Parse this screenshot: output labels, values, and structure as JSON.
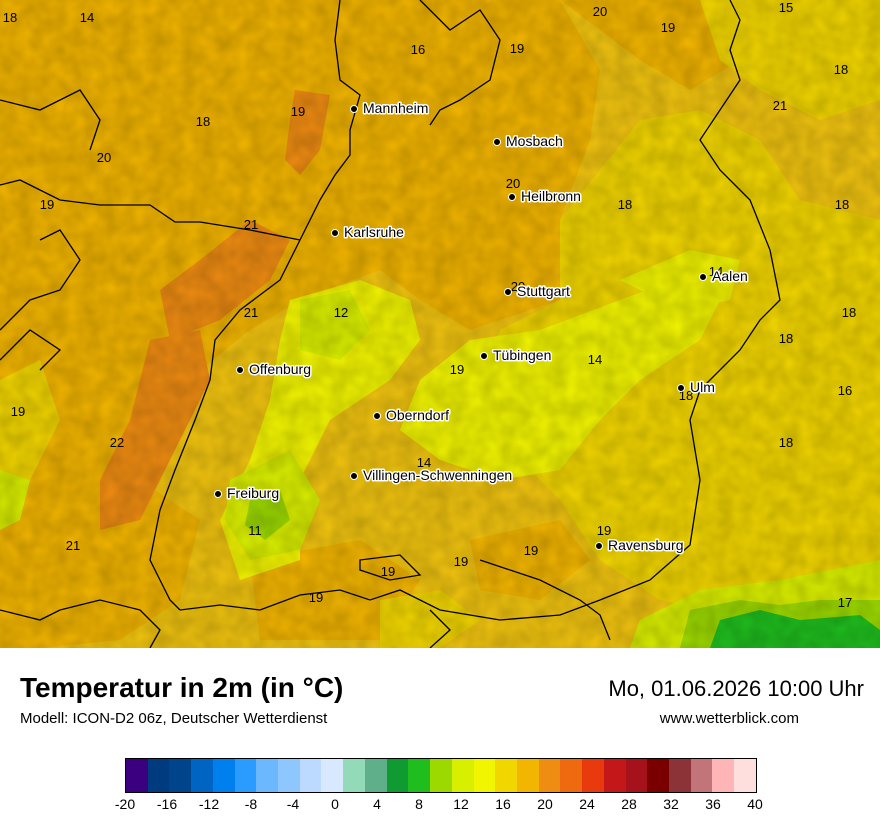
{
  "map": {
    "cities": [
      {
        "name": "Mannheim"
      },
      {
        "name": "Mosbach"
      },
      {
        "name": "Heilbronn"
      },
      {
        "name": "Karlsruhe"
      },
      {
        "name": "Aalen"
      },
      {
        "name": "Stuttgart"
      },
      {
        "name": "Tübingen"
      },
      {
        "name": "Offenburg"
      },
      {
        "name": "Ulm"
      },
      {
        "name": "Oberndorf"
      },
      {
        "name": "Villingen-Schwenningen"
      },
      {
        "name": "Freiburg"
      },
      {
        "name": "Ravensburg"
      }
    ],
    "temperature_labels": [
      "18",
      "14",
      "20",
      "19",
      "15",
      "16",
      "19",
      "18",
      "21",
      "19",
      "18",
      "20",
      "20",
      "18",
      "18",
      "19",
      "21",
      "14",
      "20",
      "21",
      "12",
      "18",
      "19",
      "14",
      "18",
      "19",
      "18",
      "16",
      "22",
      "18",
      "14",
      "11",
      "21",
      "19",
      "19",
      "19",
      "19",
      "19",
      "17"
    ]
  },
  "footer": {
    "title": "Temperatur in 2m (in °C)",
    "model": "Modell: ICON-D2 06z, Deutscher Wetterdienst",
    "datetime": "Mo, 01.06.2026 10:00 Uhr",
    "website": "www.wetterblick.com"
  },
  "legend": {
    "colors": [
      "#3b007f",
      "#003b7f",
      "#00458b",
      "#0064c2",
      "#0080ee",
      "#2a9bff",
      "#6cb8ff",
      "#8ec6fe",
      "#bcdaff",
      "#d7e8ff",
      "#93dbb8",
      "#5fb08a",
      "#0f9b31",
      "#1fbd1e",
      "#9cd900",
      "#d9ef00",
      "#f2f500",
      "#f2d600",
      "#f2b500",
      "#ef8c12",
      "#ef6a0e",
      "#e93a0e",
      "#c4171a",
      "#a6121c",
      "#7a0000",
      "#8c3338",
      "#c27479",
      "#fdb5b5",
      "#ffdede"
    ],
    "ticks": [
      "-20",
      "-16",
      "-12",
      "-8",
      "-4",
      "0",
      "4",
      "8",
      "12",
      "16",
      "20",
      "24",
      "28",
      "32",
      "36",
      "40"
    ]
  }
}
